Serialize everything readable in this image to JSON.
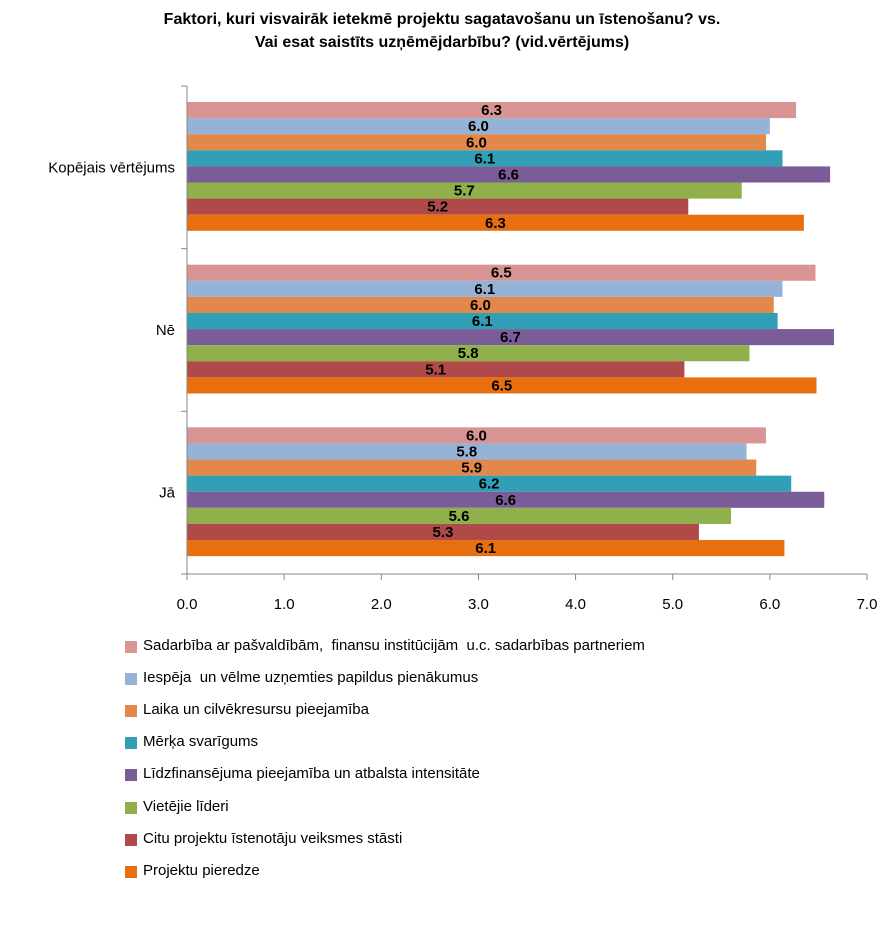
{
  "chart_data": {
    "type": "bar",
    "orientation": "horizontal",
    "title_lines": [
      "Faktori, kuri visvairāk ietekmē projektu sagatavošanu un īstenošanu? vs.",
      "Vai esat saistīts uzņēmējdarbību? (vid.vērtējums)"
    ],
    "categories": [
      "Kopējais vērtējums",
      "Nē",
      "Jā"
    ],
    "xlim": [
      0,
      7
    ],
    "xticks": [
      "0.0",
      "1.0",
      "2.0",
      "3.0",
      "4.0",
      "5.0",
      "6.0",
      "7.0"
    ],
    "grid": false,
    "legend_position": "bottom",
    "series": [
      {
        "name": "Sadarbība ar pašvaldībām,  finansu institūcijām  u.c. sadarbības partneriem",
        "color": "#D99594",
        "values": [
          6.27,
          6.47,
          5.96
        ],
        "labels": [
          "6.3",
          "6.5",
          "6.0"
        ]
      },
      {
        "name": "Iespēja  un vēlme uzņemties papildus pienākumus",
        "color": "#95B3D7",
        "values": [
          6.0,
          6.13,
          5.76
        ],
        "labels": [
          "6.0",
          "6.1",
          "5.8"
        ]
      },
      {
        "name": "Laika un cilvēkresursu pieejamība",
        "color": "#E2884A",
        "values": [
          5.96,
          6.04,
          5.86
        ],
        "labels": [
          "6.0",
          "6.0",
          "5.9"
        ]
      },
      {
        "name": "Mērķa svarīgums",
        "color": "#31A0B6",
        "values": [
          6.13,
          6.08,
          6.22
        ],
        "labels": [
          "6.1",
          "6.1",
          "6.2"
        ]
      },
      {
        "name": "Līdzfinansējuma pieejamība un atbalsta intensitāte",
        "color": "#7A5C99",
        "values": [
          6.62,
          6.66,
          6.56
        ],
        "labels": [
          "6.6",
          "6.7",
          "6.6"
        ]
      },
      {
        "name": "Vietējie līderi",
        "color": "#8FB04A",
        "values": [
          5.71,
          5.79,
          5.6
        ],
        "labels": [
          "5.7",
          "5.8",
          "5.6"
        ]
      },
      {
        "name": "Citu projektu īstenotāju veiksmes stāsti",
        "color": "#B04A48",
        "values": [
          5.16,
          5.12,
          5.27
        ],
        "labels": [
          "5.2",
          "5.1",
          "5.3"
        ]
      },
      {
        "name": "Projektu pieredze",
        "color": "#E86F10",
        "values": [
          6.35,
          6.48,
          6.15
        ],
        "labels": [
          "6.3",
          "6.5",
          "6.1"
        ]
      }
    ]
  }
}
